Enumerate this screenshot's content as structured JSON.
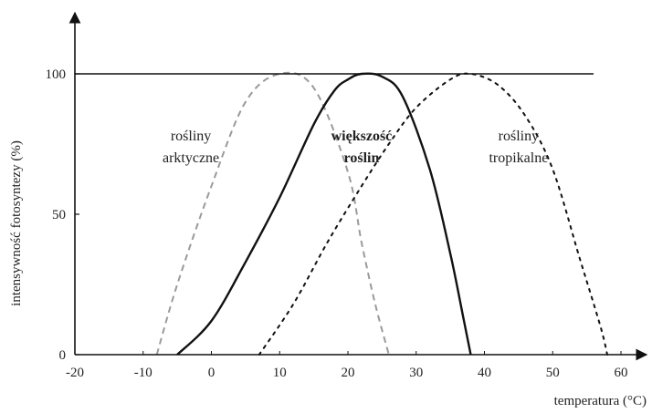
{
  "chart_data": {
    "type": "line",
    "title": "",
    "xlabel": "temperatura (°C)",
    "ylabel": "intensywność fotosyntezy (%)",
    "xlim": [
      -20,
      60
    ],
    "ylim": [
      0,
      100
    ],
    "x_ticks": [
      "-20",
      "-10",
      "0",
      "10",
      "20",
      "30",
      "40",
      "50",
      "60"
    ],
    "y_ticks": [
      "0",
      "50",
      "100"
    ],
    "grid": false,
    "reference_line": {
      "y": 100
    },
    "series": [
      {
        "name": "rośliny arktyczne",
        "style": "dashed-gray",
        "x": [
          -8,
          -5,
          0,
          5,
          10,
          15,
          20,
          22,
          24,
          26
        ],
        "y": [
          0,
          25,
          60,
          90,
          100,
          95,
          65,
          40,
          18,
          0
        ]
      },
      {
        "name": "większość roślin",
        "style": "solid-black",
        "x": [
          -5,
          0,
          5,
          10,
          15,
          18,
          20,
          22,
          25,
          28,
          32,
          35,
          37,
          38
        ],
        "y": [
          0,
          12,
          33,
          56,
          82,
          94,
          98,
          100,
          99,
          92,
          66,
          36,
          12,
          0
        ]
      },
      {
        "name": "rośliny tropikalne",
        "style": "dotted-black",
        "x": [
          7,
          12,
          17,
          22,
          26,
          30,
          35,
          38,
          42,
          46,
          50,
          54,
          57,
          58
        ],
        "y": [
          0,
          18,
          40,
          60,
          75,
          88,
          98,
          100,
          96,
          85,
          66,
          34,
          10,
          0
        ]
      }
    ],
    "annotations": [
      {
        "lines": [
          "rośliny",
          "arktyczne"
        ],
        "bold": false,
        "x": -3,
        "y": 75
      },
      {
        "lines": [
          "większość",
          "roślin"
        ],
        "bold": true,
        "x": 22,
        "y": 75
      },
      {
        "lines": [
          "rośliny",
          "tropikalne"
        ],
        "bold": false,
        "x": 45,
        "y": 75
      }
    ]
  }
}
